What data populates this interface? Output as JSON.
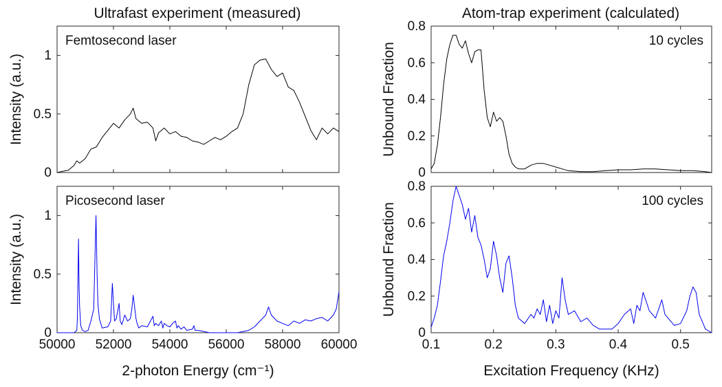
{
  "colors": {
    "black_series": "#000000",
    "blue_series": "#0000ee",
    "axis": "#262626"
  },
  "titles": {
    "left": "Ultrafast experiment (measured)",
    "right": "Atom-trap experiment (calculated)"
  },
  "chart_data": [
    {
      "id": "femto",
      "type": "line",
      "title": "Ultrafast experiment (measured)",
      "annotation": "Femtosecond laser",
      "xlabel": "",
      "ylabel": "Intensity (a.u.)",
      "xlim": [
        50000,
        60000
      ],
      "ylim": [
        0,
        1.25
      ],
      "xticks": [
        50000,
        52000,
        54000,
        56000,
        58000,
        60000
      ],
      "xticklabels": [
        "",
        "",
        "",
        "",
        "",
        ""
      ],
      "yticks": [
        0,
        0.5,
        1
      ],
      "yticklabels": [
        "0",
        "0.5",
        "1"
      ],
      "color": "#000000",
      "x": [
        50000,
        50200,
        50400,
        50600,
        50700,
        50800,
        51000,
        51200,
        51400,
        51600,
        51800,
        52000,
        52200,
        52400,
        52600,
        52700,
        52800,
        53000,
        53200,
        53400,
        53500,
        53600,
        53800,
        54000,
        54200,
        54400,
        54600,
        54800,
        55000,
        55200,
        55400,
        55600,
        55800,
        56000,
        56200,
        56400,
        56600,
        56800,
        57000,
        57200,
        57400,
        57600,
        57800,
        58000,
        58200,
        58400,
        58600,
        58800,
        59000,
        59200,
        59400,
        59600,
        59800,
        60000
      ],
      "y": [
        0,
        0.01,
        0.02,
        0.06,
        0.1,
        0.08,
        0.12,
        0.2,
        0.22,
        0.3,
        0.36,
        0.42,
        0.38,
        0.45,
        0.5,
        0.55,
        0.46,
        0.42,
        0.43,
        0.38,
        0.27,
        0.34,
        0.38,
        0.33,
        0.35,
        0.31,
        0.3,
        0.27,
        0.26,
        0.24,
        0.27,
        0.3,
        0.28,
        0.31,
        0.35,
        0.38,
        0.5,
        0.75,
        0.92,
        0.96,
        0.97,
        0.88,
        0.82,
        0.85,
        0.73,
        0.7,
        0.6,
        0.48,
        0.36,
        0.28,
        0.38,
        0.33,
        0.38,
        0.35
      ]
    },
    {
      "id": "pico",
      "type": "line",
      "title": "",
      "annotation": "Picosecond laser",
      "xlabel": "2-photon Energy (cm⁻¹)",
      "ylabel": "Intensity (a.u.)",
      "xlim": [
        50000,
        60000
      ],
      "ylim": [
        0,
        1.25
      ],
      "xticks": [
        50000,
        52000,
        54000,
        56000,
        58000,
        60000
      ],
      "xticklabels": [
        "50000",
        "52000",
        "54000",
        "56000",
        "58000",
        "60000"
      ],
      "yticks": [
        0,
        0.5,
        1
      ],
      "yticklabels": [
        "0",
        "0.5",
        "1"
      ],
      "color": "#0000ee",
      "x": [
        50000,
        50600,
        50700,
        50720,
        50760,
        50780,
        50800,
        50840,
        50900,
        51000,
        51100,
        51200,
        51300,
        51380,
        51420,
        51450,
        51500,
        51600,
        51800,
        51900,
        51960,
        52000,
        52040,
        52100,
        52200,
        52240,
        52300,
        52400,
        52500,
        52600,
        52650,
        52700,
        52800,
        52840,
        52900,
        53000,
        53200,
        53400,
        53450,
        53500,
        53600,
        53700,
        53750,
        53800,
        53900,
        54000,
        54100,
        54200,
        54250,
        54300,
        54400,
        54500,
        54600,
        54800,
        54850,
        54900,
        55000,
        55200,
        55400,
        55600,
        56000,
        56400,
        56800,
        57000,
        57200,
        57400,
        57500,
        57600,
        57800,
        58000,
        58200,
        58400,
        58600,
        58800,
        59000,
        59200,
        59400,
        59600,
        59800,
        59900,
        60000
      ],
      "y": [
        0,
        0,
        0.02,
        0.12,
        0.8,
        0.4,
        0.22,
        0.06,
        0.02,
        0.01,
        0.02,
        0.1,
        0.2,
        1.0,
        0.5,
        0.25,
        0.12,
        0.04,
        0.05,
        0.1,
        0.42,
        0.25,
        0.1,
        0.12,
        0.25,
        0.1,
        0.07,
        0.15,
        0.1,
        0.12,
        0.2,
        0.32,
        0.12,
        0.08,
        0.04,
        0.06,
        0.05,
        0.14,
        0.06,
        0.08,
        0.06,
        0.1,
        0.04,
        0.08,
        0.06,
        0.05,
        0.08,
        0.1,
        0.04,
        0.06,
        0.03,
        0.05,
        0.02,
        0.03,
        0.06,
        0.02,
        0.02,
        0.01,
        0.0,
        0.0,
        0.0,
        0.0,
        0.02,
        0.05,
        0.1,
        0.15,
        0.22,
        0.15,
        0.1,
        0.08,
        0.06,
        0.1,
        0.08,
        0.11,
        0.1,
        0.12,
        0.13,
        0.1,
        0.15,
        0.2,
        0.35
      ]
    },
    {
      "id": "cycles10",
      "type": "line",
      "title": "Atom-trap experiment (calculated)",
      "annotation": "10 cycles",
      "xlabel": "",
      "ylabel": "Unbound Fraction",
      "xlim": [
        0.1,
        0.55
      ],
      "ylim": [
        0,
        0.8
      ],
      "xticks": [
        0.1,
        0.2,
        0.3,
        0.4,
        0.5
      ],
      "xticklabels": [
        "",
        "",
        "",
        "",
        ""
      ],
      "yticks": [
        0,
        0.2,
        0.4,
        0.6,
        0.8
      ],
      "yticklabels": [
        "0",
        "0.2",
        "0.4",
        "0.6",
        "0.8"
      ],
      "color": "#000000",
      "x": [
        0.1,
        0.105,
        0.11,
        0.115,
        0.12,
        0.125,
        0.13,
        0.135,
        0.14,
        0.145,
        0.15,
        0.155,
        0.16,
        0.165,
        0.17,
        0.175,
        0.18,
        0.185,
        0.19,
        0.195,
        0.2,
        0.205,
        0.21,
        0.215,
        0.22,
        0.225,
        0.23,
        0.235,
        0.24,
        0.25,
        0.26,
        0.27,
        0.28,
        0.29,
        0.3,
        0.31,
        0.32,
        0.34,
        0.36,
        0.38,
        0.4,
        0.42,
        0.44,
        0.46,
        0.48,
        0.5,
        0.52,
        0.54,
        0.55
      ],
      "y": [
        0.02,
        0.05,
        0.15,
        0.3,
        0.48,
        0.62,
        0.7,
        0.75,
        0.75,
        0.7,
        0.68,
        0.72,
        0.65,
        0.6,
        0.66,
        0.67,
        0.67,
        0.45,
        0.3,
        0.25,
        0.33,
        0.28,
        0.3,
        0.28,
        0.2,
        0.1,
        0.05,
        0.03,
        0.02,
        0.02,
        0.04,
        0.05,
        0.05,
        0.04,
        0.03,
        0.02,
        0.01,
        0.005,
        0.005,
        0.01,
        0.015,
        0.015,
        0.02,
        0.02,
        0.015,
        0.01,
        0.01,
        0.005,
        0.0
      ]
    },
    {
      "id": "cycles100",
      "type": "line",
      "title": "",
      "annotation": "100 cycles",
      "xlabel": "Excitation Frequency (KHz)",
      "ylabel": "Unbound Fraction",
      "xlim": [
        0.1,
        0.55
      ],
      "ylim": [
        0,
        0.8
      ],
      "xticks": [
        0.1,
        0.2,
        0.3,
        0.4,
        0.5
      ],
      "xticklabels": [
        "0.1",
        "0.2",
        "0.3",
        "0.4",
        "0.5"
      ],
      "yticks": [
        0,
        0.2,
        0.4,
        0.6,
        0.8
      ],
      "yticklabels": [
        "0",
        "0.2",
        "0.4",
        "0.6",
        "0.8"
      ],
      "color": "#0000ee",
      "x": [
        0.1,
        0.105,
        0.11,
        0.115,
        0.12,
        0.125,
        0.13,
        0.135,
        0.14,
        0.145,
        0.15,
        0.155,
        0.16,
        0.165,
        0.17,
        0.175,
        0.18,
        0.185,
        0.19,
        0.195,
        0.2,
        0.205,
        0.21,
        0.215,
        0.22,
        0.225,
        0.23,
        0.235,
        0.24,
        0.25,
        0.26,
        0.265,
        0.27,
        0.275,
        0.28,
        0.285,
        0.29,
        0.295,
        0.3,
        0.305,
        0.31,
        0.315,
        0.32,
        0.33,
        0.34,
        0.35,
        0.36,
        0.37,
        0.38,
        0.39,
        0.4,
        0.41,
        0.42,
        0.425,
        0.43,
        0.435,
        0.44,
        0.445,
        0.45,
        0.46,
        0.47,
        0.475,
        0.48,
        0.49,
        0.5,
        0.51,
        0.515,
        0.52,
        0.525,
        0.53,
        0.54,
        0.55
      ],
      "y": [
        0.03,
        0.08,
        0.15,
        0.28,
        0.42,
        0.5,
        0.6,
        0.72,
        0.8,
        0.75,
        0.7,
        0.62,
        0.68,
        0.55,
        0.64,
        0.52,
        0.48,
        0.4,
        0.3,
        0.35,
        0.5,
        0.42,
        0.3,
        0.22,
        0.38,
        0.42,
        0.3,
        0.15,
        0.08,
        0.05,
        0.1,
        0.08,
        0.13,
        0.1,
        0.18,
        0.06,
        0.15,
        0.05,
        0.12,
        0.08,
        0.3,
        0.18,
        0.1,
        0.12,
        0.06,
        0.08,
        0.04,
        0.02,
        0.02,
        0.02,
        0.05,
        0.1,
        0.13,
        0.05,
        0.15,
        0.12,
        0.22,
        0.17,
        0.12,
        0.08,
        0.18,
        0.1,
        0.08,
        0.04,
        0.05,
        0.12,
        0.2,
        0.25,
        0.22,
        0.1,
        0.02,
        0.0
      ]
    }
  ]
}
